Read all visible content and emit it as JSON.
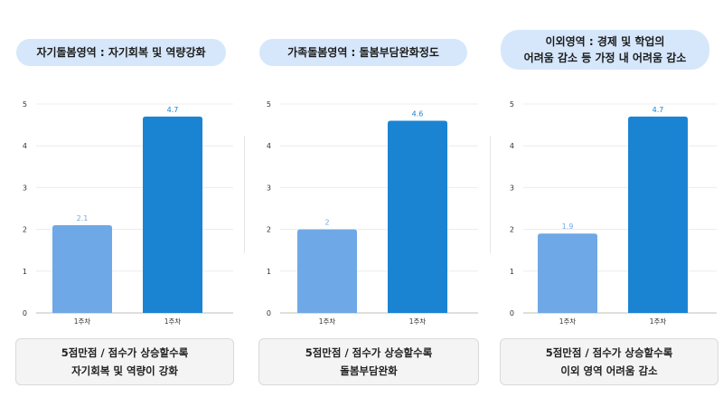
{
  "panels": [
    {
      "title_lines": [
        "자기돌봄영역 : 자기회복 및 역량강화"
      ],
      "note_lines": [
        "5점만점 / 점수가 상승할수록",
        "자기회복 및 역량이 강화"
      ]
    },
    {
      "title_lines": [
        "가족돌봄영역 : 돌봄부담완화정도"
      ],
      "note_lines": [
        "5점만점 / 점수가 상승할수록",
        "돌봄부담완화"
      ]
    },
    {
      "title_lines": [
        "이외영역 : 경제 및 학업의",
        "어려움 감소 등 가정 내 어려움 감소"
      ],
      "note_lines": [
        "5점만점 / 점수가 상승할수록",
        "이외 영역 어려움 감소"
      ]
    }
  ],
  "chart_data": [
    {
      "type": "bar",
      "categories": [
        "1주차",
        "1주차"
      ],
      "values": [
        2.1,
        4.7
      ],
      "data_labels": [
        "2.1",
        "4.7"
      ],
      "ylim": [
        0,
        5
      ],
      "yticks": [
        "0",
        "1",
        "2",
        "3",
        "4",
        "5"
      ],
      "colors": [
        "#6fa8e6",
        "#1a84d3"
      ],
      "grid": true,
      "legend": "none"
    },
    {
      "type": "bar",
      "categories": [
        "1주차",
        "1주차"
      ],
      "values": [
        2,
        4.6
      ],
      "data_labels": [
        "2",
        "4.6"
      ],
      "ylim": [
        0,
        5
      ],
      "yticks": [
        "0",
        "1",
        "2",
        "3",
        "4",
        "5"
      ],
      "colors": [
        "#6fa8e6",
        "#1a84d3"
      ],
      "grid": true,
      "legend": "none"
    },
    {
      "type": "bar",
      "categories": [
        "1주차",
        "1주차"
      ],
      "values": [
        1.9,
        4.7
      ],
      "data_labels": [
        "1.9",
        "4.7"
      ],
      "ylim": [
        0,
        5
      ],
      "yticks": [
        "0",
        "1",
        "2",
        "3",
        "4",
        "5"
      ],
      "colors": [
        "#6fa8e6",
        "#1a84d3"
      ],
      "grid": true,
      "legend": "none"
    }
  ]
}
